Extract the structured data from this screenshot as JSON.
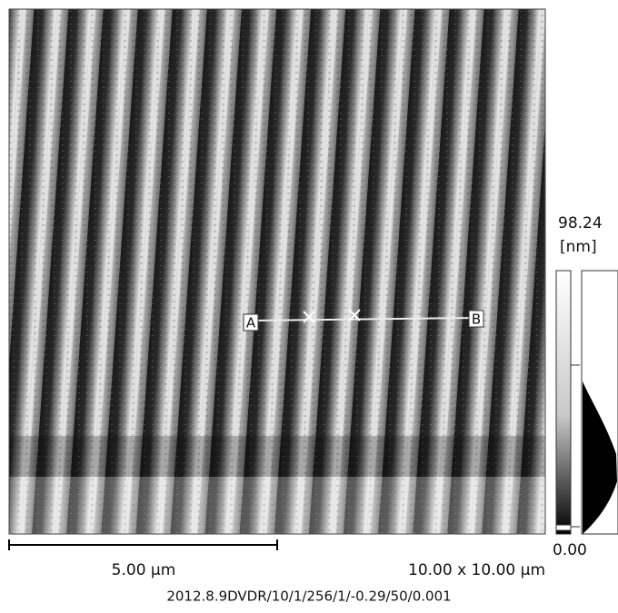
{
  "scale": {
    "max": "98.24",
    "unit": "[nm]",
    "min": "0.00"
  },
  "scale_bar": {
    "label": "5.00 µm"
  },
  "image_size": "10.00 x 10.00 µm",
  "caption": "2012.8.9DVDR/10/1/256/1/-0.29/50/0.001",
  "profile": {
    "start": "A",
    "end": "B"
  }
}
